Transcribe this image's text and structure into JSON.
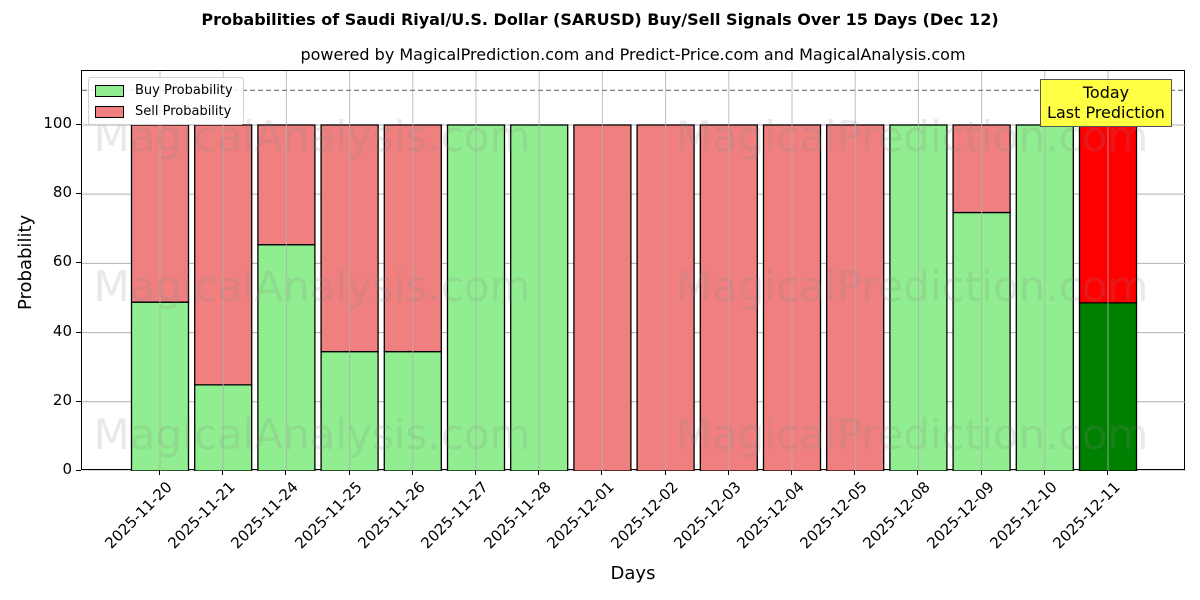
{
  "header": {
    "title": "Probabilities of Saudi Riyal/U.S. Dollar (SARUSD) Buy/Sell Signals Over 15 Days (Dec 12)",
    "subtitle": "powered by MagicalPrediction.com and Predict-Price.com and MagicalAnalysis.com"
  },
  "legend": {
    "buy_label": "Buy Probability",
    "sell_label": "Sell Probability"
  },
  "annotation": {
    "line1": "Today",
    "line2": "Last Prediction"
  },
  "axes": {
    "xlabel": "Days",
    "ylabel": "Probability",
    "yticks": [
      "0",
      "20",
      "40",
      "60",
      "80",
      "100"
    ]
  },
  "watermarks": [
    "MagicalAnalysis.com",
    "MagicalPrediction.com"
  ],
  "colors": {
    "buy": "#90ee90",
    "sell": "#f08080",
    "today_buy": "#008000",
    "today_sell": "#ff0000",
    "annotation_bg": "#ffff44",
    "grid": "#b0b0b0",
    "dashed_line": "#808080"
  },
  "chart_data": {
    "type": "bar",
    "stacked": true,
    "title": "Probabilities of Saudi Riyal/U.S. Dollar (SARUSD) Buy/Sell Signals Over 15 Days (Dec 12)",
    "subtitle": "powered by MagicalPrediction.com and Predict-Price.com and MagicalAnalysis.com",
    "xlabel": "Days",
    "ylabel": "Probability",
    "ylim": [
      0,
      115.6
    ],
    "yticks": [
      0,
      20,
      40,
      60,
      80,
      100
    ],
    "grid": true,
    "legend_position": "upper left",
    "reference_line": {
      "y": 110,
      "style": "dashed"
    },
    "categories": [
      "2025-11-20",
      "2025-11-21",
      "2025-11-24",
      "2025-11-25",
      "2025-11-26",
      "2025-11-27",
      "2025-11-28",
      "2025-12-01",
      "2025-12-02",
      "2025-12-03",
      "2025-12-04",
      "2025-12-05",
      "2025-12-08",
      "2025-12-09",
      "2025-12-10",
      "2025-12-11"
    ],
    "series": [
      {
        "name": "Buy Probability",
        "values": [
          48.8,
          24.9,
          65.4,
          34.5,
          34.5,
          100,
          100,
          0,
          0,
          0,
          0,
          0,
          100,
          74.7,
          100,
          48.6
        ]
      },
      {
        "name": "Sell Probability",
        "values": [
          51.2,
          75.1,
          34.6,
          65.5,
          65.5,
          0,
          0,
          100,
          100,
          100,
          100,
          100,
          0,
          25.3,
          0,
          51.4
        ]
      }
    ],
    "annotations": [
      {
        "text": "Today\nLast Prediction",
        "category": "2025-12-11"
      }
    ],
    "highlight_last_bar": true
  }
}
